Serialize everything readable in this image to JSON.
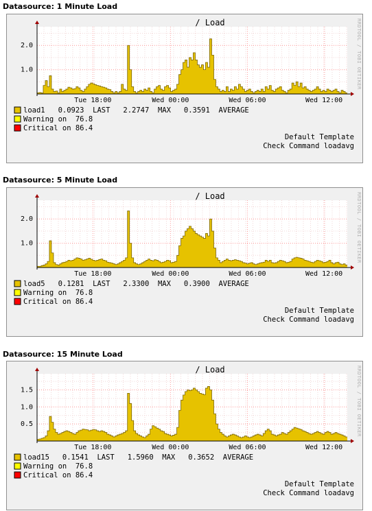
{
  "colors": {
    "area_fill": "#e6c200",
    "area_line": "#7a6400",
    "warning": "#ffff00",
    "critical": "#ff0000",
    "grid": "#ff9c9c"
  },
  "graphs": [
    {
      "datasource_label": "Datasource: 1 Minute Load",
      "title": "/ Load",
      "side_text": "RRDTOOL / TOBI OETIKER",
      "legend": [
        {
          "swatch": "area",
          "text": "load1   0.0923  LAST   2.2747  MAX   0.3591  AVERAGE"
        },
        {
          "swatch": "warning",
          "text": "Warning on  76.8"
        },
        {
          "swatch": "critical",
          "text": "Critical on 86.4"
        }
      ],
      "footer": [
        "Default Template",
        "Check Command loadavg"
      ],
      "chart_data": {
        "type": "area",
        "series": [
          {
            "name": "load1",
            "values": [
              0.05,
              0.06,
              0.04,
              0.35,
              0.55,
              0.3,
              0.75,
              0.2,
              0.1,
              0.12,
              0.05,
              0.2,
              0.1,
              0.15,
              0.2,
              0.28,
              0.25,
              0.2,
              0.22,
              0.3,
              0.25,
              0.15,
              0.1,
              0.2,
              0.3,
              0.4,
              0.45,
              0.42,
              0.38,
              0.35,
              0.33,
              0.3,
              0.28,
              0.25,
              0.2,
              0.18,
              0.1,
              0.05,
              0.1,
              0.05,
              0.1,
              0.4,
              0.2,
              0.15,
              2.0,
              1.0,
              0.3,
              0.1,
              0.05,
              0.1,
              0.15,
              0.1,
              0.2,
              0.15,
              0.25,
              0.1,
              0.05,
              0.2,
              0.3,
              0.35,
              0.2,
              0.15,
              0.3,
              0.35,
              0.25,
              0.1,
              0.15,
              0.2,
              0.4,
              0.8,
              1.0,
              1.3,
              1.4,
              1.1,
              1.5,
              1.4,
              1.7,
              1.4,
              1.2,
              1.1,
              1.2,
              1.0,
              1.3,
              1.1,
              2.27,
              1.6,
              0.6,
              0.3,
              0.2,
              0.1,
              0.15,
              0.1,
              0.3,
              0.1,
              0.2,
              0.15,
              0.3,
              0.2,
              0.4,
              0.3,
              0.2,
              0.1,
              0.15,
              0.2,
              0.1,
              0.05,
              0.1,
              0.15,
              0.1,
              0.2,
              0.1,
              0.3,
              0.2,
              0.35,
              0.15,
              0.1,
              0.2,
              0.25,
              0.3,
              0.15,
              0.1,
              0.05,
              0.15,
              0.2,
              0.45,
              0.35,
              0.5,
              0.3,
              0.45,
              0.25,
              0.3,
              0.2,
              0.15,
              0.1,
              0.15,
              0.2,
              0.3,
              0.2,
              0.1,
              0.15,
              0.1,
              0.2,
              0.15,
              0.1,
              0.15,
              0.2,
              0.1,
              0.05,
              0.15,
              0.1,
              0.05
            ]
          }
        ],
        "x_ticks": [
          "Tue 18:00",
          "Wed 00:00",
          "Wed 06:00",
          "Wed 12:00"
        ],
        "x_tick_fractions": [
          0.18,
          0.43,
          0.678,
          0.925
        ],
        "y_ticks": [
          1.0,
          2.0
        ],
        "ylim": [
          0,
          2.6
        ]
      }
    },
    {
      "datasource_label": "Datasource: 5 Minute Load",
      "title": "/ Load",
      "side_text": "RRDTOOL / TOBI OETIKER",
      "legend": [
        {
          "swatch": "area",
          "text": "load5   0.1281  LAST   2.3300  MAX   0.3900  AVERAGE"
        },
        {
          "swatch": "warning",
          "text": "Warning on  76.8"
        },
        {
          "swatch": "critical",
          "text": "Critical on 86.4"
        }
      ],
      "footer": [
        "Default Template",
        "Check Command loadavg"
      ],
      "chart_data": {
        "type": "area",
        "series": [
          {
            "name": "load5",
            "values": [
              0.05,
              0.05,
              0.08,
              0.1,
              0.15,
              0.25,
              1.1,
              0.6,
              0.2,
              0.12,
              0.1,
              0.15,
              0.2,
              0.22,
              0.25,
              0.3,
              0.28,
              0.3,
              0.35,
              0.4,
              0.38,
              0.35,
              0.3,
              0.32,
              0.35,
              0.38,
              0.34,
              0.3,
              0.28,
              0.3,
              0.33,
              0.35,
              0.3,
              0.28,
              0.22,
              0.2,
              0.18,
              0.15,
              0.12,
              0.15,
              0.2,
              0.25,
              0.3,
              0.4,
              2.33,
              1.0,
              0.4,
              0.2,
              0.15,
              0.12,
              0.15,
              0.2,
              0.25,
              0.3,
              0.35,
              0.3,
              0.28,
              0.32,
              0.3,
              0.25,
              0.2,
              0.22,
              0.25,
              0.3,
              0.28,
              0.2,
              0.22,
              0.25,
              0.5,
              0.9,
              1.2,
              1.3,
              1.5,
              1.6,
              1.7,
              1.6,
              1.5,
              1.4,
              1.35,
              1.3,
              1.25,
              1.2,
              1.4,
              1.3,
              2.0,
              1.5,
              0.8,
              0.4,
              0.3,
              0.2,
              0.25,
              0.3,
              0.35,
              0.3,
              0.28,
              0.3,
              0.32,
              0.3,
              0.28,
              0.25,
              0.2,
              0.18,
              0.15,
              0.18,
              0.2,
              0.15,
              0.12,
              0.15,
              0.18,
              0.2,
              0.22,
              0.3,
              0.25,
              0.3,
              0.2,
              0.18,
              0.2,
              0.25,
              0.3,
              0.28,
              0.25,
              0.2,
              0.22,
              0.25,
              0.35,
              0.4,
              0.42,
              0.4,
              0.38,
              0.35,
              0.3,
              0.28,
              0.25,
              0.22,
              0.2,
              0.25,
              0.3,
              0.28,
              0.25,
              0.2,
              0.22,
              0.25,
              0.3,
              0.2,
              0.15,
              0.2,
              0.22,
              0.15,
              0.12,
              0.15,
              0.1
            ]
          }
        ],
        "x_ticks": [
          "Tue 18:00",
          "Wed 00:00",
          "Wed 06:00",
          "Wed 12:00"
        ],
        "x_tick_fractions": [
          0.18,
          0.43,
          0.678,
          0.925
        ],
        "y_ticks": [
          1.0,
          2.0
        ],
        "ylim": [
          0,
          2.6
        ]
      }
    },
    {
      "datasource_label": "Datasource: 15 Minute Load",
      "title": "/ Load",
      "side_text": "RRDTOOL / TOBI OETIKER",
      "legend": [
        {
          "swatch": "area",
          "text": "load15   0.1541  LAST   1.5960  MAX   0.3652  AVERAGE"
        },
        {
          "swatch": "warning",
          "text": "Warning on  76.8"
        },
        {
          "swatch": "critical",
          "text": "Critical on 86.4"
        }
      ],
      "footer": [
        "Default Template",
        "Check Command loadavg"
      ],
      "chart_data": {
        "type": "area",
        "series": [
          {
            "name": "load15",
            "values": [
              0.05,
              0.06,
              0.08,
              0.1,
              0.15,
              0.3,
              0.72,
              0.55,
              0.35,
              0.25,
              0.2,
              0.22,
              0.25,
              0.28,
              0.3,
              0.28,
              0.25,
              0.22,
              0.2,
              0.25,
              0.3,
              0.32,
              0.35,
              0.34,
              0.33,
              0.3,
              0.32,
              0.34,
              0.33,
              0.3,
              0.28,
              0.3,
              0.28,
              0.25,
              0.2,
              0.18,
              0.15,
              0.12,
              0.15,
              0.18,
              0.2,
              0.22,
              0.25,
              0.3,
              1.4,
              1.1,
              0.6,
              0.3,
              0.22,
              0.18,
              0.15,
              0.12,
              0.1,
              0.15,
              0.2,
              0.35,
              0.45,
              0.42,
              0.38,
              0.35,
              0.3,
              0.28,
              0.22,
              0.2,
              0.18,
              0.15,
              0.17,
              0.2,
              0.4,
              0.9,
              1.2,
              1.35,
              1.45,
              1.5,
              1.48,
              1.5,
              1.55,
              1.5,
              1.45,
              1.4,
              1.38,
              1.36,
              1.55,
              1.6,
              1.5,
              1.2,
              0.8,
              0.5,
              0.35,
              0.25,
              0.2,
              0.15,
              0.12,
              0.15,
              0.18,
              0.2,
              0.18,
              0.15,
              0.12,
              0.1,
              0.12,
              0.15,
              0.12,
              0.1,
              0.12,
              0.15,
              0.18,
              0.2,
              0.18,
              0.15,
              0.22,
              0.3,
              0.35,
              0.3,
              0.2,
              0.18,
              0.15,
              0.18,
              0.2,
              0.25,
              0.22,
              0.2,
              0.25,
              0.3,
              0.35,
              0.4,
              0.38,
              0.36,
              0.34,
              0.3,
              0.28,
              0.25,
              0.22,
              0.2,
              0.22,
              0.25,
              0.28,
              0.25,
              0.22,
              0.2,
              0.25,
              0.28,
              0.25,
              0.2,
              0.22,
              0.25,
              0.22,
              0.2,
              0.18,
              0.15,
              0.12
            ]
          }
        ],
        "x_ticks": [
          "Tue 18:00",
          "Wed 00:00",
          "Wed 06:00",
          "Wed 12:00"
        ],
        "x_tick_fractions": [
          0.18,
          0.43,
          0.678,
          0.925
        ],
        "y_ticks": [
          0.5,
          1.0,
          1.5
        ],
        "ylim": [
          0,
          1.85
        ]
      }
    }
  ]
}
